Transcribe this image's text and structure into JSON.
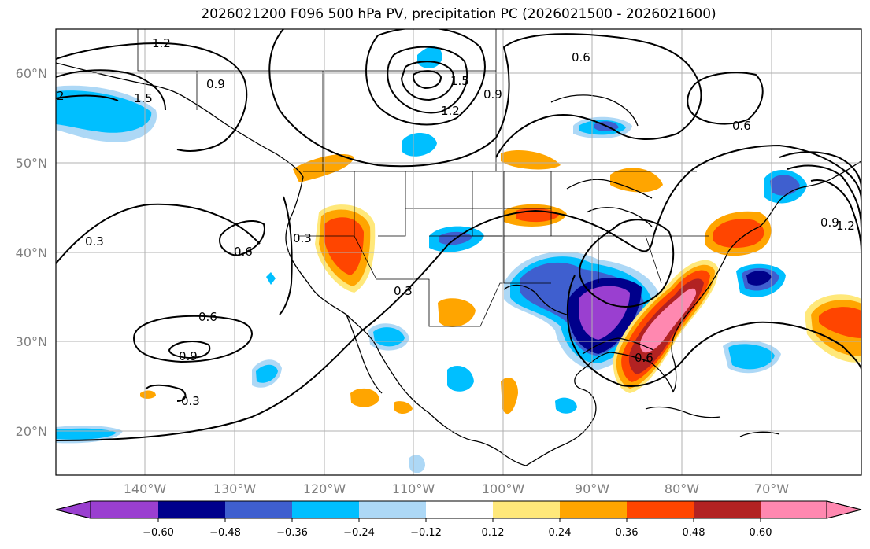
{
  "title": "2026021200 F096 500 hPa PV, precipitation PC (2026021500 - 2026021600)",
  "map": {
    "lat_labels": [
      "60°N",
      "50°N",
      "40°N",
      "30°N",
      "20°N"
    ],
    "lon_labels": [
      "140°W",
      "130°W",
      "120°W",
      "110°W",
      "100°W",
      "90°W",
      "80°W",
      "70°W"
    ],
    "contour_labels": [
      "1.2",
      "0.6",
      "0.9",
      "1.5",
      "1.2",
      "1.5",
      "0.9",
      "0.6",
      "0.3",
      "0.6",
      "0.3",
      "0.6",
      "0.9",
      "0.3",
      "0.6",
      "0.9",
      "1.2",
      "0.3",
      "2"
    ],
    "colors": {
      "coastline": "#000000",
      "pv_contour": "#000000",
      "grid": "#b0b0b0",
      "background": "#ffffff"
    }
  },
  "colorbar": {
    "ticks": [
      "−0.60",
      "−0.48",
      "−0.36",
      "−0.24",
      "−0.12",
      "0.12",
      "0.24",
      "0.36",
      "0.48",
      "0.60"
    ],
    "colors": [
      "#9a3fd0",
      "#00008b",
      "#3f5fcf",
      "#00bfff",
      "#add8f6",
      "#ffffff",
      "#ffe87a",
      "#ffa500",
      "#ff4500",
      "#b22222",
      "#ff88b0"
    ]
  }
}
